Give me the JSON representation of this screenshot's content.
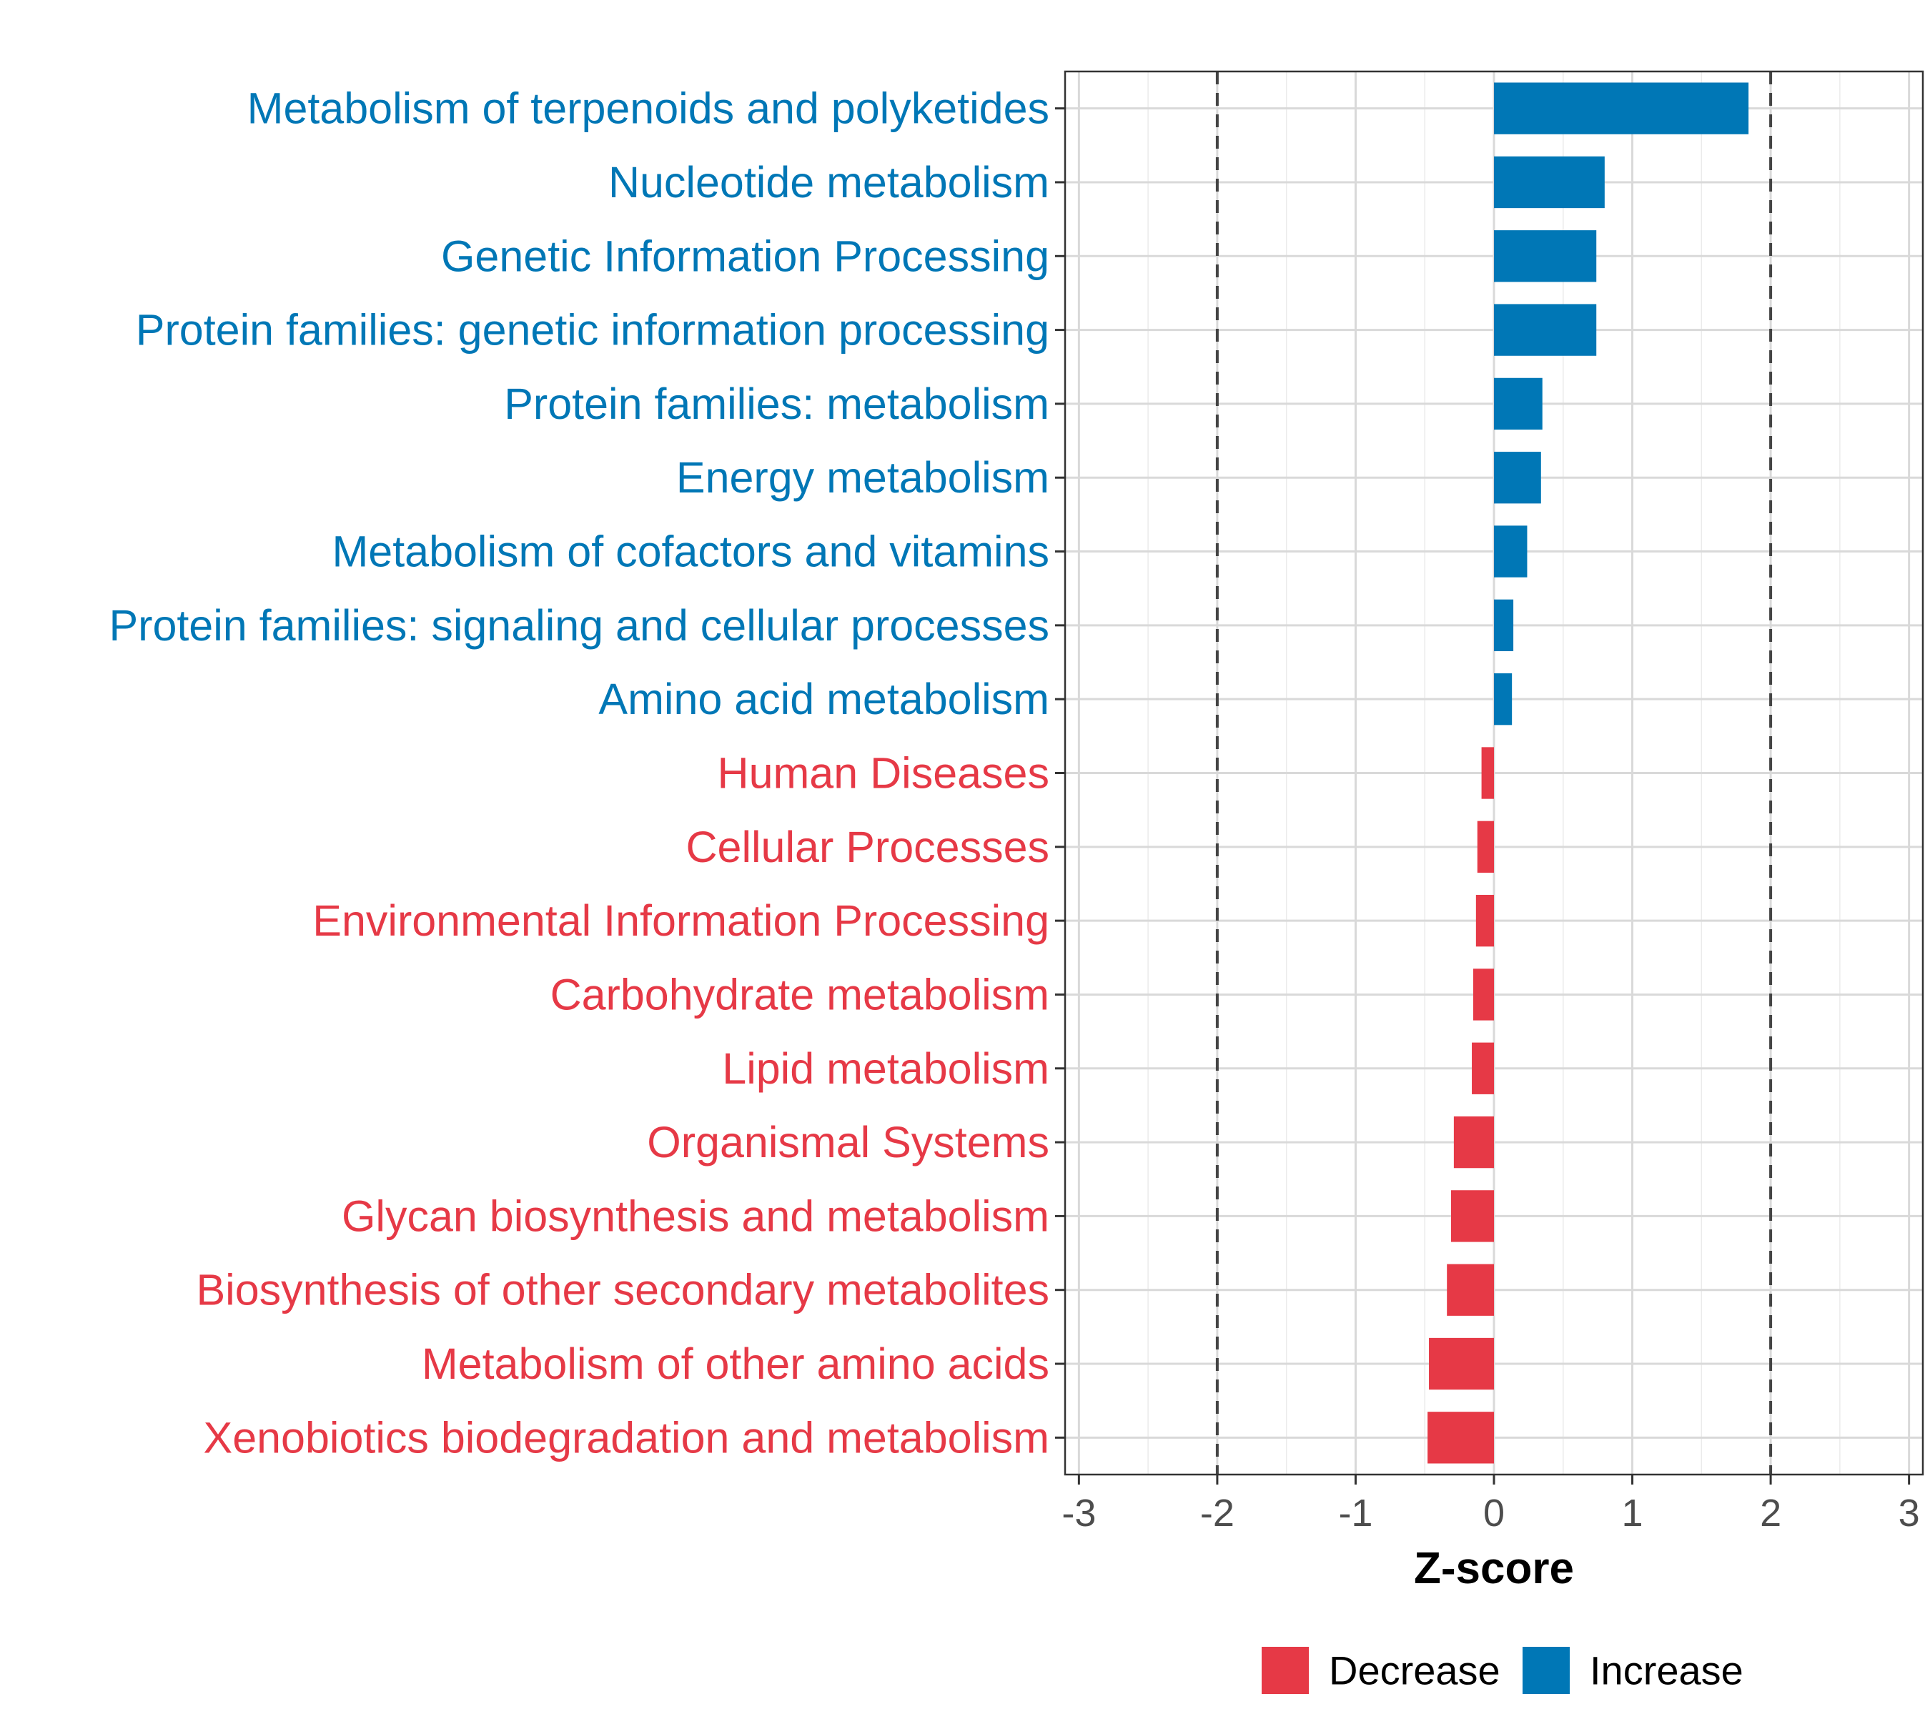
{
  "chart_data": {
    "type": "bar",
    "orientation": "horizontal",
    "title": "",
    "xlabel": "Z-score",
    "ylabel": "",
    "xlim": [
      -3.1,
      3.1
    ],
    "x_ticks": [
      -3,
      -2,
      -1,
      0,
      1,
      2,
      3
    ],
    "x_tick_labels": [
      "-3",
      "-2",
      "-1",
      "0",
      "1",
      "2",
      "3"
    ],
    "reference_lines": [
      -2,
      2
    ],
    "grid": true,
    "legend_position": "bottom",
    "colors": {
      "Decrease": "#E63946",
      "Increase": "#0077B6"
    },
    "categories": [
      "Metabolism of terpenoids and polyketides",
      "Nucleotide metabolism",
      "Genetic Information Processing",
      "Protein families: genetic information processing",
      "Protein families: metabolism",
      "Energy metabolism",
      "Metabolism of cofactors and vitamins",
      "Protein families: signaling and cellular processes",
      "Amino acid metabolism",
      "Human Diseases",
      "Cellular Processes",
      "Environmental Information Processing",
      "Carbohydrate metabolism",
      "Lipid metabolism",
      "Organismal Systems",
      "Glycan biosynthesis and metabolism",
      "Biosynthesis of other secondary metabolites",
      "Metabolism of other amino acids",
      "Xenobiotics biodegradation and metabolism"
    ],
    "values": [
      1.84,
      0.8,
      0.74,
      0.74,
      0.35,
      0.34,
      0.24,
      0.14,
      0.13,
      -0.09,
      -0.12,
      -0.13,
      -0.15,
      -0.16,
      -0.29,
      -0.31,
      -0.34,
      -0.47,
      -0.48
    ],
    "groups": [
      "Increase",
      "Increase",
      "Increase",
      "Increase",
      "Increase",
      "Increase",
      "Increase",
      "Increase",
      "Increase",
      "Decrease",
      "Decrease",
      "Decrease",
      "Decrease",
      "Decrease",
      "Decrease",
      "Decrease",
      "Decrease",
      "Decrease",
      "Decrease"
    ],
    "legend": [
      {
        "label": "Decrease",
        "color": "#E63946"
      },
      {
        "label": "Increase",
        "color": "#0077B6"
      }
    ]
  }
}
